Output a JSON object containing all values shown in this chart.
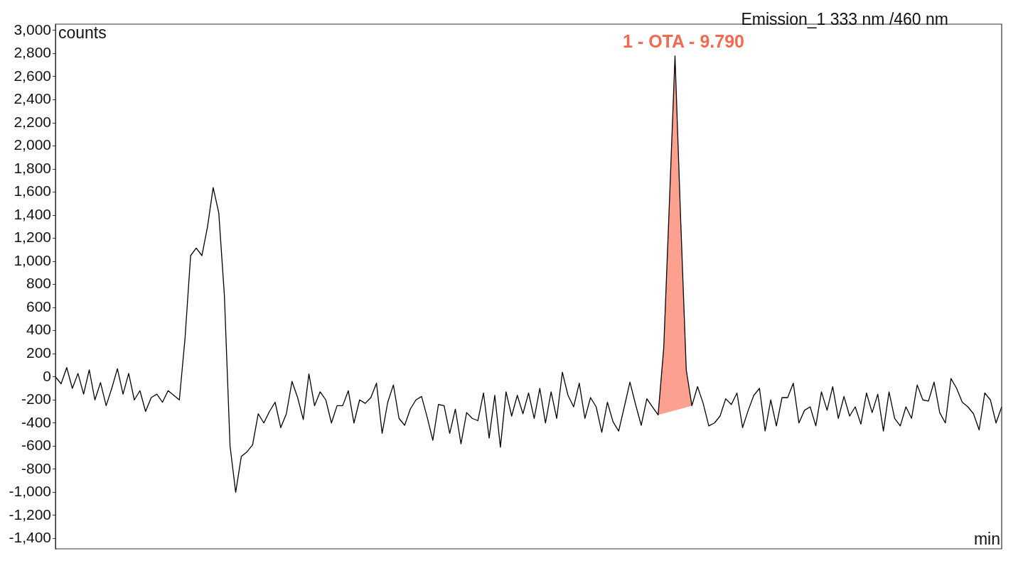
{
  "chart_data": {
    "type": "line",
    "title": "Emission_1 333 nm /460 nm",
    "ylabel": "counts",
    "xlabel": "min",
    "annotations": [
      "1 - OTA - 9.790"
    ],
    "categories": [
      null,
      null,
      null,
      null,
      null,
      null,
      null,
      null,
      null,
      null,
      null,
      null,
      null,
      null,
      null,
      null,
      null,
      null,
      null,
      null,
      null,
      null,
      null,
      null,
      null,
      null,
      null,
      null,
      null,
      null,
      null,
      null,
      null,
      null,
      null,
      null,
      null,
      null,
      null,
      null,
      null,
      null,
      null,
      null,
      null,
      null,
      null,
      null,
      null,
      null,
      null,
      null,
      null,
      null,
      null,
      null,
      null,
      null,
      null,
      null,
      null,
      null,
      null,
      null,
      null,
      null,
      null,
      null,
      null,
      null,
      null,
      null,
      null,
      null,
      null,
      null,
      null,
      null,
      null,
      null,
      null,
      null,
      null,
      null,
      null,
      null,
      null,
      null,
      null,
      null,
      null,
      null,
      null,
      null,
      null,
      null,
      null,
      null,
      null,
      null,
      null,
      null,
      null,
      null,
      null,
      null,
      null,
      null,
      null,
      null,
      null,
      null,
      null,
      null,
      null,
      null,
      null,
      null,
      null,
      null,
      null,
      null,
      null,
      null,
      null,
      null,
      null,
      null,
      null,
      null,
      null,
      null,
      null,
      null,
      null,
      null,
      null,
      null,
      null,
      null,
      null,
      null,
      null,
      null,
      null,
      null,
      null,
      null,
      null,
      null,
      null,
      null,
      null,
      null,
      null,
      null,
      null,
      null,
      null,
      null,
      null,
      null,
      null,
      null,
      null,
      null,
      null,
      null,
      null
    ],
    "series": [
      {
        "type": "area",
        "color": "#fca08f",
        "values": [
          null,
          null,
          null,
          null,
          null,
          null,
          null,
          null,
          null,
          null,
          null,
          null,
          null,
          null,
          null,
          null,
          null,
          null,
          null,
          null,
          null,
          null,
          null,
          null,
          null,
          null,
          null,
          null,
          null,
          null,
          null,
          null,
          null,
          null,
          null,
          null,
          null,
          null,
          null,
          null,
          null,
          null,
          null,
          null,
          null,
          null,
          null,
          null,
          null,
          null,
          null,
          null,
          null,
          null,
          null,
          null,
          null,
          null,
          null,
          null,
          null,
          null,
          null,
          null,
          null,
          null,
          null,
          null,
          null,
          null,
          null,
          null,
          null,
          null,
          null,
          null,
          null,
          null,
          null,
          null,
          null,
          null,
          null,
          null,
          null,
          null,
          null,
          null,
          null,
          null,
          null,
          null,
          null,
          null,
          null,
          null,
          null,
          null,
          null,
          null,
          null,
          null,
          null,
          null,
          null,
          null,
          null,
          -330,
          250,
          1500,
          2780,
          1370,
          60,
          -250,
          null,
          null,
          null,
          null,
          null,
          null,
          null,
          null,
          null,
          null,
          null,
          null,
          null,
          null,
          null,
          null,
          null,
          null,
          null,
          null,
          null,
          null,
          null,
          null,
          null,
          null,
          null,
          null,
          null,
          null,
          null,
          null,
          null,
          null,
          null,
          null,
          null,
          null,
          null,
          null,
          null,
          null,
          null,
          null,
          null,
          null,
          null,
          null,
          null,
          null,
          null,
          null,
          null,
          null,
          null
        ]
      },
      {
        "type": "line",
        "color": "#000000",
        "values": [
          0,
          -60,
          80,
          -100,
          30,
          -150,
          60,
          -200,
          -50,
          -250,
          -100,
          70,
          -150,
          30,
          -200,
          -120,
          -300,
          -180,
          -150,
          -220,
          -120,
          -160,
          -200,
          330,
          1050,
          1115,
          1050,
          1300,
          1640,
          1420,
          700,
          -600,
          -1000,
          -690,
          -650,
          -590,
          -320,
          -400,
          -300,
          -220,
          -440,
          -320,
          -40,
          -180,
          -370,
          25,
          -250,
          -130,
          -200,
          -400,
          -250,
          -250,
          -120,
          -400,
          -200,
          -230,
          -180,
          -55,
          -490,
          -220,
          -70,
          -360,
          -420,
          -280,
          -200,
          -170,
          -350,
          -550,
          -240,
          -250,
          -490,
          -280,
          -580,
          -310,
          -360,
          -380,
          -140,
          -530,
          -160,
          -610,
          -130,
          -340,
          -160,
          -320,
          -140,
          -360,
          -100,
          -400,
          -130,
          -360,
          40,
          -160,
          -260,
          -55,
          -360,
          -180,
          -260,
          -480,
          -220,
          -390,
          -470,
          -260,
          -45,
          -240,
          -420,
          -190,
          -260,
          -330,
          250,
          1500,
          2780,
          1370,
          60,
          -250,
          -85,
          -230,
          -425,
          -400,
          -340,
          -190,
          -240,
          -140,
          -440,
          -290,
          -160,
          -100,
          -470,
          -200,
          -425,
          -180,
          -180,
          -55,
          -400,
          -290,
          -260,
          -425,
          -130,
          -290,
          -85,
          -360,
          -170,
          -340,
          -260,
          -410,
          -140,
          -310,
          -150,
          -470,
          -130,
          -360,
          -425,
          -260,
          -360,
          -70,
          -200,
          -210,
          -45,
          -310,
          -400,
          -15,
          -100,
          -220,
          -260,
          -320,
          -460,
          -140,
          -200,
          -400,
          -260
        ]
      }
    ],
    "ylim": [
      -1490,
      3055
    ],
    "yticks": [
      {
        "value": -1400,
        "label": "-1,400"
      },
      {
        "value": -1200,
        "label": "-1,200"
      },
      {
        "value": -1000,
        "label": "-1,000"
      },
      -800,
      -600,
      -400,
      -200,
      0,
      200,
      400,
      600,
      800,
      {
        "value": 1000,
        "label": "1,000"
      },
      {
        "value": 1200,
        "label": "1,200"
      },
      {
        "value": 1400,
        "label": "1,400"
      },
      {
        "value": 1600,
        "label": "1,600"
      },
      {
        "value": 1800,
        "label": "1,800"
      },
      {
        "value": 2000,
        "label": "2,000"
      },
      {
        "value": 2200,
        "label": "2,200"
      },
      {
        "value": 2400,
        "label": "2,400"
      },
      {
        "value": 2600,
        "label": "2,600"
      },
      {
        "value": 2800,
        "label": "2,800"
      },
      {
        "value": 3000,
        "label": "3,000"
      }
    ],
    "tick_labels": "y",
    "legend": false,
    "marker": "none"
  }
}
